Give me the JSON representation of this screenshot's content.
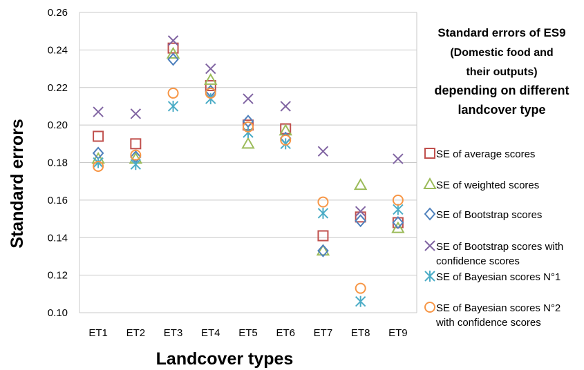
{
  "chart_data": {
    "type": "scatter",
    "title_lines": [
      "Standard errors of ES9",
      "(Domestic food and",
      "their outputs)",
      "depending on different",
      "landcover type"
    ],
    "xlabel": "Landcover types",
    "ylabel": "Standard errors",
    "categories": [
      "ET1",
      "ET2",
      "ET3",
      "ET4",
      "ET5",
      "ET6",
      "ET7",
      "ET8",
      "ET9"
    ],
    "ylim": [
      0.1,
      0.26
    ],
    "yticks": [
      "0.10",
      "0.12",
      "0.14",
      "0.16",
      "0.18",
      "0.20",
      "0.22",
      "0.24",
      "0.26"
    ],
    "grid": true,
    "legend_position": "right",
    "series": [
      {
        "name_lines": [
          "SE of average scores"
        ],
        "marker": "square",
        "color": "#c0504d",
        "values": [
          0.194,
          0.19,
          0.241,
          0.221,
          0.2,
          0.198,
          0.141,
          0.151,
          0.148
        ]
      },
      {
        "name_lines": [
          "SE of weighted scores"
        ],
        "marker": "triangle",
        "color": "#9bbb59",
        "values": [
          0.182,
          0.182,
          0.238,
          0.224,
          0.19,
          0.197,
          0.133,
          0.168,
          0.145
        ]
      },
      {
        "name_lines": [
          "SE of Bootstrap scores"
        ],
        "marker": "diamond",
        "color": "#4f81bd",
        "values": [
          0.185,
          0.183,
          0.235,
          0.218,
          0.202,
          0.193,
          0.133,
          0.149,
          0.148
        ]
      },
      {
        "name_lines": [
          "SE of Bootstrap scores with",
          "confidence scores"
        ],
        "marker": "x",
        "color": "#8064a2",
        "values": [
          0.207,
          0.206,
          0.245,
          0.23,
          0.214,
          0.21,
          0.186,
          0.154,
          0.182
        ]
      },
      {
        "name_lines": [
          "SE of Bayesian scores  N°1"
        ],
        "marker": "star",
        "color": "#4bacc6",
        "values": [
          0.18,
          0.179,
          0.21,
          0.214,
          0.196,
          0.19,
          0.153,
          0.106,
          0.155
        ]
      },
      {
        "name_lines": [
          "SE of Bayesian scores N°2",
          "with confidence scores"
        ],
        "marker": "circle",
        "color": "#f79646",
        "values": [
          0.178,
          0.184,
          0.217,
          0.217,
          0.199,
          0.192,
          0.159,
          0.113,
          0.16
        ]
      }
    ]
  }
}
